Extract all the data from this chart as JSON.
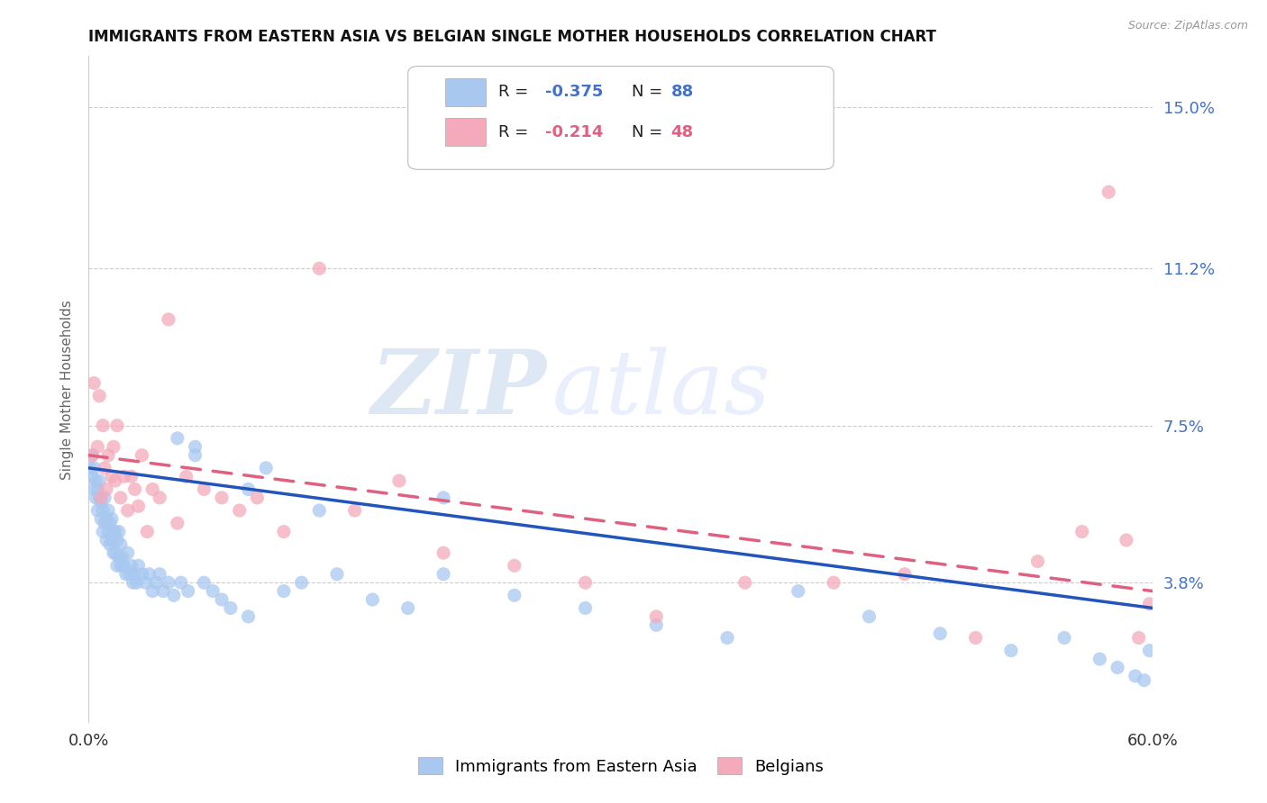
{
  "title": "IMMIGRANTS FROM EASTERN ASIA VS BELGIAN SINGLE MOTHER HOUSEHOLDS CORRELATION CHART",
  "source": "Source: ZipAtlas.com",
  "ylabel": "Single Mother Households",
  "ytick_vals": [
    0.038,
    0.075,
    0.112,
    0.15
  ],
  "ytick_labels": [
    "3.8%",
    "7.5%",
    "11.2%",
    "15.0%"
  ],
  "xmin": 0.0,
  "xmax": 0.6,
  "ymin": 0.005,
  "ymax": 0.162,
  "blue_color": "#A8C8F0",
  "pink_color": "#F4AABB",
  "blue_line_color": "#2255BB",
  "pink_line_color": "#E06080",
  "right_tick_color": "#4472C4",
  "grid_color": "#CCCCCC",
  "blue_label": "Immigrants from Eastern Asia",
  "pink_label": "Belgians",
  "watermark_zip": "ZIP",
  "watermark_atlas": "atlas",
  "title_color": "#111111",
  "source_color": "#999999",
  "blue_x": [
    0.001,
    0.002,
    0.002,
    0.003,
    0.003,
    0.004,
    0.004,
    0.005,
    0.005,
    0.006,
    0.006,
    0.007,
    0.007,
    0.008,
    0.008,
    0.009,
    0.009,
    0.01,
    0.01,
    0.011,
    0.011,
    0.012,
    0.012,
    0.013,
    0.013,
    0.014,
    0.014,
    0.015,
    0.015,
    0.016,
    0.016,
    0.017,
    0.017,
    0.018,
    0.018,
    0.019,
    0.02,
    0.021,
    0.022,
    0.023,
    0.024,
    0.025,
    0.026,
    0.027,
    0.028,
    0.03,
    0.032,
    0.034,
    0.036,
    0.038,
    0.04,
    0.042,
    0.045,
    0.048,
    0.052,
    0.056,
    0.06,
    0.065,
    0.07,
    0.075,
    0.08,
    0.09,
    0.1,
    0.11,
    0.12,
    0.13,
    0.14,
    0.16,
    0.18,
    0.2,
    0.24,
    0.28,
    0.32,
    0.36,
    0.4,
    0.44,
    0.48,
    0.52,
    0.55,
    0.57,
    0.58,
    0.59,
    0.595,
    0.598,
    0.05,
    0.06,
    0.09,
    0.2
  ],
  "blue_y": [
    0.065,
    0.063,
    0.068,
    0.06,
    0.065,
    0.058,
    0.062,
    0.055,
    0.06,
    0.058,
    0.062,
    0.053,
    0.057,
    0.05,
    0.055,
    0.052,
    0.058,
    0.048,
    0.053,
    0.05,
    0.055,
    0.047,
    0.052,
    0.048,
    0.053,
    0.045,
    0.05,
    0.045,
    0.05,
    0.042,
    0.048,
    0.044,
    0.05,
    0.042,
    0.047,
    0.044,
    0.042,
    0.04,
    0.045,
    0.04,
    0.042,
    0.038,
    0.04,
    0.038,
    0.042,
    0.04,
    0.038,
    0.04,
    0.036,
    0.038,
    0.04,
    0.036,
    0.038,
    0.035,
    0.038,
    0.036,
    0.07,
    0.038,
    0.036,
    0.034,
    0.032,
    0.03,
    0.065,
    0.036,
    0.038,
    0.055,
    0.04,
    0.034,
    0.032,
    0.04,
    0.035,
    0.032,
    0.028,
    0.025,
    0.036,
    0.03,
    0.026,
    0.022,
    0.025,
    0.02,
    0.018,
    0.016,
    0.015,
    0.022,
    0.072,
    0.068,
    0.06,
    0.058
  ],
  "pink_x": [
    0.002,
    0.003,
    0.005,
    0.006,
    0.007,
    0.008,
    0.009,
    0.01,
    0.011,
    0.013,
    0.014,
    0.015,
    0.016,
    0.018,
    0.02,
    0.022,
    0.024,
    0.026,
    0.028,
    0.03,
    0.033,
    0.036,
    0.04,
    0.045,
    0.05,
    0.055,
    0.065,
    0.075,
    0.085,
    0.095,
    0.11,
    0.13,
    0.15,
    0.175,
    0.2,
    0.24,
    0.28,
    0.32,
    0.37,
    0.42,
    0.46,
    0.5,
    0.535,
    0.56,
    0.575,
    0.585,
    0.592,
    0.598
  ],
  "pink_y": [
    0.068,
    0.085,
    0.07,
    0.082,
    0.058,
    0.075,
    0.065,
    0.06,
    0.068,
    0.063,
    0.07,
    0.062,
    0.075,
    0.058,
    0.063,
    0.055,
    0.063,
    0.06,
    0.056,
    0.068,
    0.05,
    0.06,
    0.058,
    0.1,
    0.052,
    0.063,
    0.06,
    0.058,
    0.055,
    0.058,
    0.05,
    0.112,
    0.055,
    0.062,
    0.045,
    0.042,
    0.038,
    0.03,
    0.038,
    0.038,
    0.04,
    0.025,
    0.043,
    0.05,
    0.13,
    0.048,
    0.025,
    0.033
  ],
  "blue_line_start_y": 0.065,
  "blue_line_end_y": 0.032,
  "pink_line_start_y": 0.068,
  "pink_line_end_y": 0.036
}
